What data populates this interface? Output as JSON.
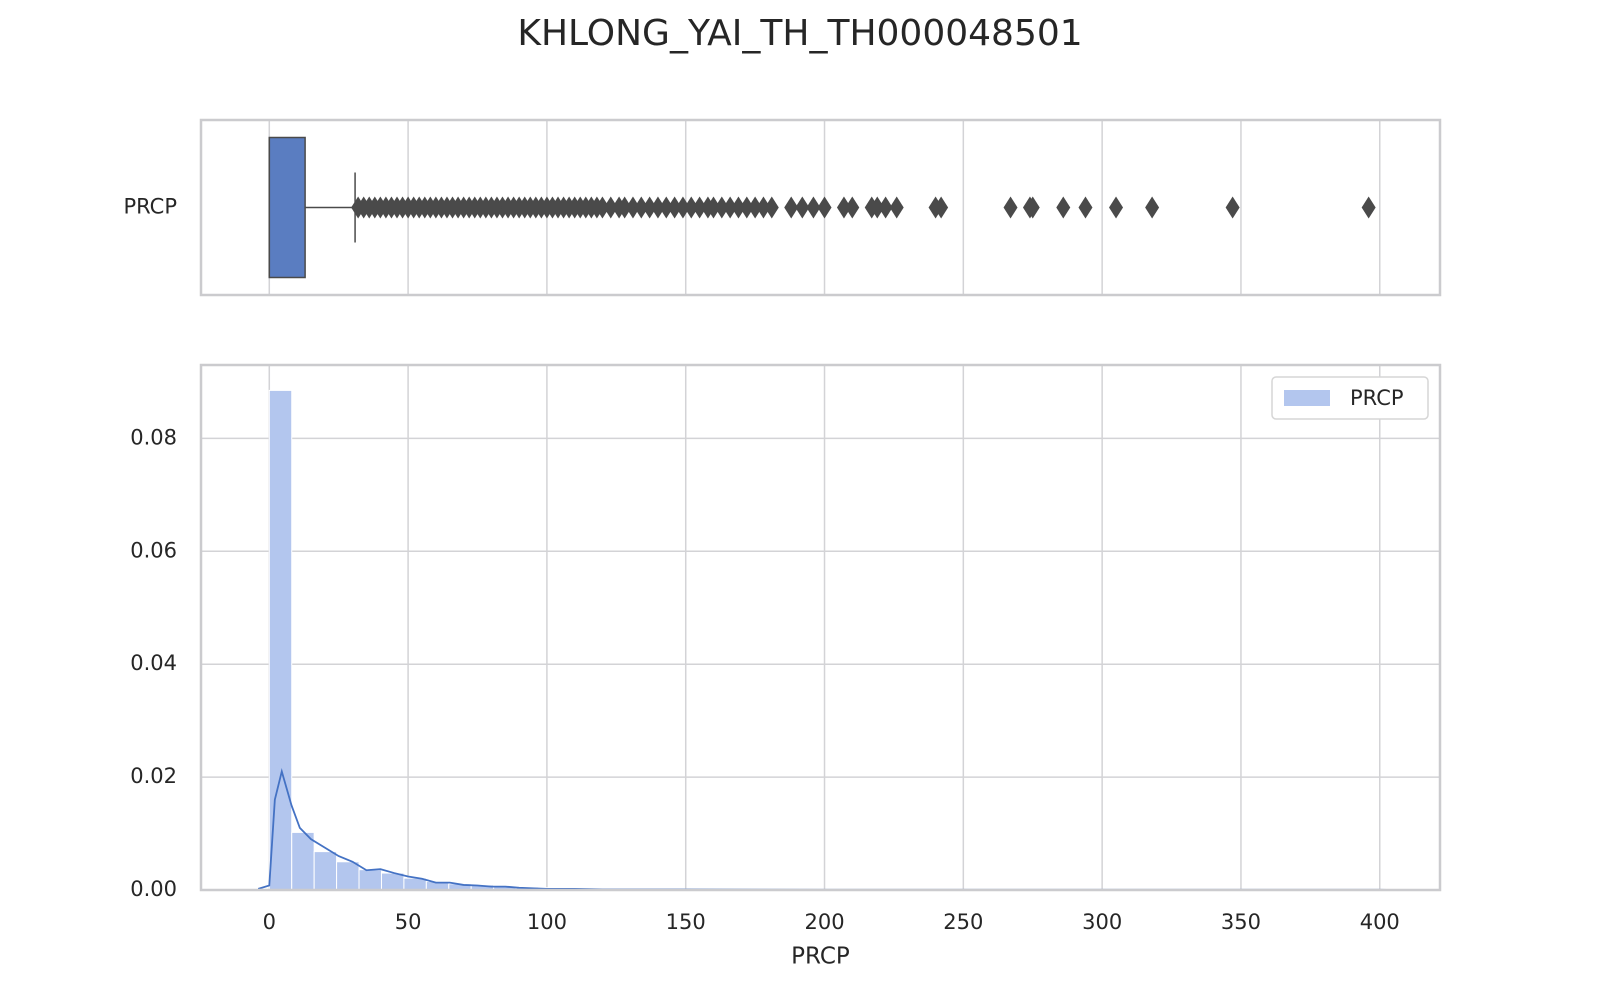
{
  "title": "KHLONG_YAI_TH_TH000048501",
  "chart_data": [
    {
      "type": "box",
      "label": "PRCP",
      "color": "#5a7dc1",
      "flier_color": "#4a4a4a",
      "q1": 0,
      "median": 0,
      "q3": 12.9,
      "whislo": 0,
      "whishi": 30.9,
      "fliers": [
        32,
        34,
        36,
        38,
        40,
        42,
        44,
        46,
        48,
        50,
        52,
        54,
        56,
        58,
        60,
        62,
        64,
        66,
        68,
        70,
        72,
        74,
        76,
        78,
        80,
        82,
        84,
        86,
        88,
        90,
        92,
        94,
        96,
        98,
        100,
        102,
        104,
        106,
        108,
        110,
        112,
        114,
        116,
        118,
        120,
        123,
        126,
        128,
        131,
        134,
        137,
        140,
        143,
        146,
        149,
        152,
        155,
        158,
        160,
        163,
        166,
        169,
        172,
        175,
        178,
        181,
        188,
        192,
        196,
        200,
        207,
        210,
        217,
        219,
        222,
        226,
        240,
        242,
        267,
        274,
        275,
        286,
        294,
        305,
        318,
        347,
        396
      ],
      "xlim": [
        -24.6,
        421.7
      ],
      "xticks": [
        0,
        50,
        100,
        150,
        200,
        250,
        300,
        350,
        400
      ],
      "grid": true
    },
    {
      "type": "histogram",
      "name": "PRCP",
      "color": "#b3c6ee",
      "xlabel": "PRCP",
      "bins": [
        0,
        8.08,
        16.16,
        24.24,
        32.33,
        40.41,
        48.49,
        56.57,
        64.65,
        72.73,
        80.82,
        88.9,
        96.98,
        105.06,
        113.14,
        121.22,
        129.31,
        137.39,
        145.47,
        153.55,
        161.63,
        169.71,
        177.8,
        185.88,
        193.96,
        202.04,
        210.12,
        218.2,
        226.29,
        234.37,
        242.45,
        250.53,
        258.61,
        266.69,
        274.78,
        282.86,
        290.94,
        299.02,
        307.1,
        315.18,
        323.27,
        331.35,
        339.43,
        347.51,
        355.59,
        363.67,
        371.76,
        379.84,
        387.92,
        396
      ],
      "values": [
        0.0885,
        0.0102,
        0.0068,
        0.005,
        0.0036,
        0.003,
        0.0021,
        0.0015,
        0.0011,
        0.0009,
        0.0007,
        0.0005,
        0.0004,
        0.0003,
        0.0003,
        0.0002,
        0.0002,
        0.0002,
        0.0002,
        0.0001,
        0.0001,
        0.0001,
        0.0001,
        0.0001,
        5e-05,
        5e-05,
        5e-05,
        5e-05,
        3e-05,
        3e-05,
        3e-05,
        0,
        0,
        3e-05,
        3e-05,
        3e-05,
        3e-05,
        3e-05,
        3e-05,
        0,
        0,
        0,
        0,
        3e-05,
        0,
        0,
        0,
        0,
        3e-05
      ],
      "kde": {
        "color": "#4472c4",
        "x": [
          -4,
          0,
          2,
          4.5,
          8,
          11,
          15,
          20,
          25,
          30,
          35,
          40,
          45,
          50,
          55,
          60,
          65,
          70,
          75,
          80,
          85,
          90,
          100,
          110,
          120,
          150,
          200,
          250,
          300,
          350,
          400,
          405
        ],
        "y": [
          0.0002,
          0.0008,
          0.016,
          0.021,
          0.015,
          0.011,
          0.009,
          0.0075,
          0.006,
          0.005,
          0.0035,
          0.0037,
          0.003,
          0.0024,
          0.002,
          0.0013,
          0.0013,
          0.0009,
          0.0008,
          0.0006,
          0.0006,
          0.0004,
          0.0002,
          0.0002,
          0.0001,
          0.0001,
          5e-05,
          3e-05,
          3e-05,
          3e-05,
          3e-05,
          0
        ]
      },
      "xlim": [
        -24.6,
        421.7
      ],
      "xticks": [
        0,
        50,
        100,
        150,
        200,
        250,
        300,
        350,
        400
      ],
      "ylim": [
        0,
        0.093
      ],
      "yticks": [
        {
          "value": 0,
          "label": "0.00"
        },
        {
          "value": 0.02,
          "label": "0.02"
        },
        {
          "value": 0.04,
          "label": "0.04"
        },
        {
          "value": 0.06,
          "label": "0.06"
        },
        {
          "value": 0.08,
          "label": "0.08"
        }
      ],
      "legend": "upper right",
      "grid": true
    }
  ]
}
